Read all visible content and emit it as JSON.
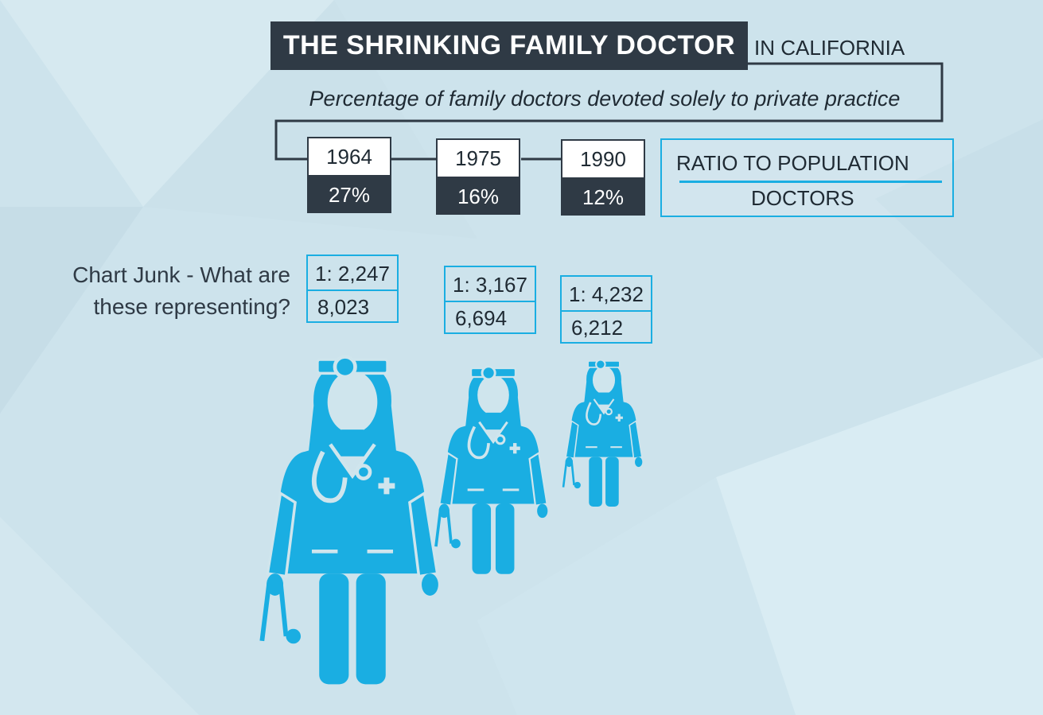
{
  "title": "THE SHRINKING FAMILY DOCTOR",
  "title_suffix": "IN CALIFORNIA",
  "subtitle": "Percentage of family doctors devoted solely to private practice",
  "legend": {
    "top": "RATIO TO POPULATION",
    "bottom": "DOCTORS"
  },
  "note": "Chart Junk - What are these representing?",
  "colors": {
    "dark": "#2f3a45",
    "accent": "#1aaee2",
    "background": "#cfe5ed"
  },
  "chart_data": {
    "type": "table",
    "title": "THE SHRINKING FAMILY DOCTOR IN CALIFORNIA",
    "subtitle": "Percentage of family doctors devoted solely to private practice",
    "categories": [
      "1964",
      "1975",
      "1990"
    ],
    "percent_labels": [
      "27%",
      "16%",
      "12%"
    ],
    "percent_values": [
      27,
      16,
      12
    ],
    "ratio_labels": [
      "1: 2,247",
      "1: 3,167",
      "1: 4,232"
    ],
    "ratio_values": [
      2247,
      3167,
      4232
    ],
    "doctor_labels": [
      "8,023",
      "6,694",
      "6,212"
    ],
    "doctor_values": [
      8023,
      6694,
      6212
    ],
    "icon": "female-doctor-icon"
  }
}
